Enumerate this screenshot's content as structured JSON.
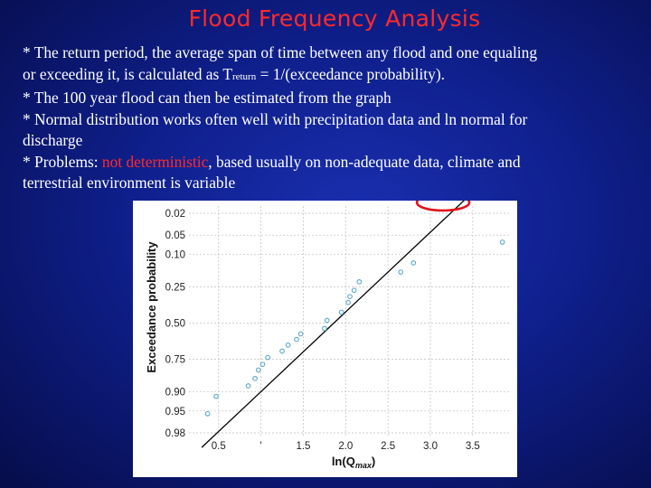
{
  "slide": {
    "title": "Flood Frequency Analysis",
    "bullets": {
      "b1_line1": "* The return period, the average span of time between any flood and one equaling",
      "b1_line2_pre": "or exceeding it, is calculated as T",
      "b1_sub": "return",
      "b1_line2_post": " = 1/(exceedance probability).",
      "b2": "* The 100 year flood can then be estimated from the graph",
      "b3_line1": "* Normal distribution works often well with precipitation data and ln normal for",
      "b3_line2": "discharge",
      "b4_pre": "* Problems: ",
      "b4_red": "not deterministic",
      "b4_post": ", based usually on non-adequate data, climate and",
      "b4_line2": "terrestrial environment is variable"
    },
    "colors": {
      "background": "#0f1f8c",
      "title": "#ff2a2a",
      "text": "#ffffff",
      "highlight": "#ff2a2a",
      "points": "#5aa8c8",
      "fit_line": "#000000",
      "annotation_ellipse": "#e0121c"
    }
  },
  "chart_data": {
    "type": "scatter",
    "xlabel": "ln(Q",
    "xlabel_sub": "max",
    "xlabel_close": ")",
    "ylabel": "Exceedance probability",
    "y_scale": "normal-probability (inverted)",
    "xlim": [
      0.15,
      3.95
    ],
    "x_ticks": [
      0.5,
      1.0,
      1.5,
      2.0,
      2.5,
      3.0,
      3.5
    ],
    "x_tick_labels": [
      "0.5",
      "'",
      "1.5",
      "2.0",
      "2.5",
      "3.0",
      "3.5"
    ],
    "y_ticks": [
      0.02,
      0.05,
      0.1,
      0.25,
      0.5,
      0.75,
      0.9,
      0.95,
      0.98
    ],
    "y_tick_labels": [
      "0.02",
      "0.05",
      "0.10",
      "0.25",
      "0.50",
      "0.75",
      "0.90",
      "0.95",
      "0.98"
    ],
    "grid": true,
    "points": [
      {
        "x": 0.37,
        "y": 0.955
      },
      {
        "x": 0.47,
        "y": 0.915
      },
      {
        "x": 0.85,
        "y": 0.88
      },
      {
        "x": 0.93,
        "y": 0.85
      },
      {
        "x": 0.97,
        "y": 0.81
      },
      {
        "x": 1.02,
        "y": 0.78
      },
      {
        "x": 1.08,
        "y": 0.74
      },
      {
        "x": 1.25,
        "y": 0.7
      },
      {
        "x": 1.32,
        "y": 0.66
      },
      {
        "x": 1.42,
        "y": 0.62
      },
      {
        "x": 1.47,
        "y": 0.58
      },
      {
        "x": 1.75,
        "y": 0.54
      },
      {
        "x": 1.78,
        "y": 0.48
      },
      {
        "x": 1.95,
        "y": 0.42
      },
      {
        "x": 2.03,
        "y": 0.35
      },
      {
        "x": 2.05,
        "y": 0.31
      },
      {
        "x": 2.1,
        "y": 0.27
      },
      {
        "x": 2.16,
        "y": 0.22
      },
      {
        "x": 2.65,
        "y": 0.17
      },
      {
        "x": 2.8,
        "y": 0.13
      },
      {
        "x": 3.85,
        "y": 0.065
      }
    ],
    "fit_line": [
      {
        "x": 0.3,
        "y": 0.99
      },
      {
        "x": 3.42,
        "y": 0.01
      }
    ],
    "annotation": {
      "shape": "ellipse",
      "x": 3.15,
      "y": 0.012
    }
  }
}
